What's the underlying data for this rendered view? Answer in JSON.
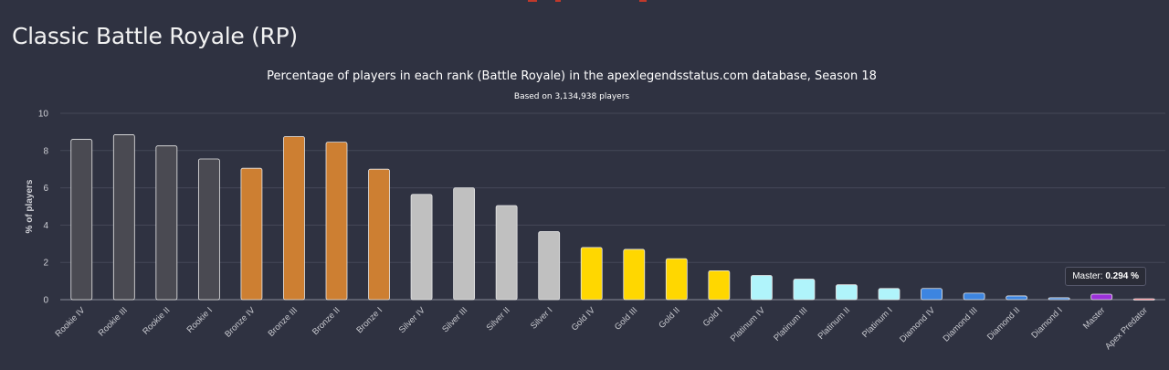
{
  "page": {
    "title": "Classic Battle Royale (RP)"
  },
  "chart_data": {
    "type": "bar",
    "title": "Percentage of players in each rank (Battle Royale) in the apexlegendsstatus.com database, Season 18",
    "subtitle": "Based on 3,134,938 players",
    "xlabel": "",
    "ylabel": "% of players",
    "ylim": [
      0,
      10
    ],
    "yticks": [
      0,
      2,
      4,
      6,
      8,
      10
    ],
    "grid": true,
    "categories": [
      "Rookie IV",
      "Rookie III",
      "Rookie II",
      "Rookie I",
      "Bronze IV",
      "Bronze III",
      "Bronze II",
      "Bronze I",
      "Silver IV",
      "Silver III",
      "Silver II",
      "Silver I",
      "Gold IV",
      "Gold III",
      "Gold II",
      "Gold I",
      "Platinum IV",
      "Platinum III",
      "Platinum II",
      "Platinum I",
      "Diamond IV",
      "Diamond III",
      "Diamond II",
      "Diamond I",
      "Master",
      "Apex Predator"
    ],
    "values": [
      8.6,
      8.85,
      8.25,
      7.55,
      7.05,
      8.75,
      8.45,
      7.0,
      5.65,
      6.0,
      5.05,
      3.65,
      2.8,
      2.7,
      2.2,
      1.55,
      1.3,
      1.1,
      0.8,
      0.6,
      0.6,
      0.35,
      0.2,
      0.1,
      0.294,
      0.05
    ],
    "colors": [
      "#4a4a52",
      "#4a4a52",
      "#4a4a52",
      "#4a4a52",
      "#cd7f32",
      "#cd7f32",
      "#cd7f32",
      "#cd7f32",
      "#c0c0c0",
      "#c0c0c0",
      "#c0c0c0",
      "#c0c0c0",
      "#ffd700",
      "#ffd700",
      "#ffd700",
      "#ffd700",
      "#b0f4fb",
      "#b0f4fb",
      "#b0f4fb",
      "#b0f4fb",
      "#3d85e0",
      "#3d85e0",
      "#3d85e0",
      "#3d85e0",
      "#9b30d9",
      "#ff6b7a"
    ],
    "tooltip": {
      "category": "Master",
      "label": "Master:",
      "value_text": "0.294 %"
    }
  }
}
